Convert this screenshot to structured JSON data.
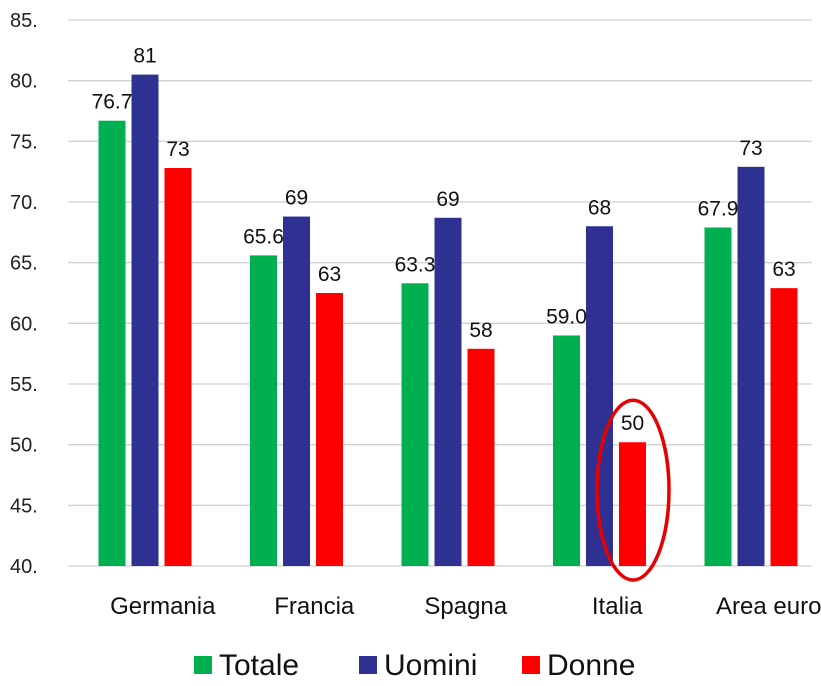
{
  "chart_data": {
    "type": "bar",
    "title": "",
    "xlabel": "",
    "ylabel": "",
    "ylim": [
      40,
      85
    ],
    "y_ticks": [
      "40.",
      "45.",
      "50.",
      "55.",
      "60.",
      "65.",
      "70.",
      "75.",
      "80.",
      "85."
    ],
    "grid": true,
    "legend_position": "bottom",
    "categories": [
      "Germania",
      "Francia",
      "Spagna",
      "Italia",
      "Area euro"
    ],
    "series": [
      {
        "name": "Totale",
        "color": "#00b050",
        "values": [
          76.7,
          65.6,
          63.3,
          59.0,
          67.9
        ],
        "labels": [
          "76.7",
          "65.6",
          "63.3",
          "59.0",
          "67.9"
        ]
      },
      {
        "name": "Uomini",
        "color": "#2e3192",
        "values": [
          80.5,
          68.8,
          68.7,
          68.0,
          72.9
        ],
        "labels": [
          "81",
          "69",
          "69",
          "68",
          "73"
        ]
      },
      {
        "name": "Donne",
        "color": "#ff0000",
        "values": [
          72.8,
          62.5,
          57.9,
          50.2,
          62.9
        ],
        "labels": [
          "73",
          "63",
          "58",
          "50",
          "63"
        ]
      }
    ],
    "annotation": {
      "shape": "ellipse",
      "color": "#e60000",
      "category": "Italia",
      "series": "Donne"
    }
  }
}
